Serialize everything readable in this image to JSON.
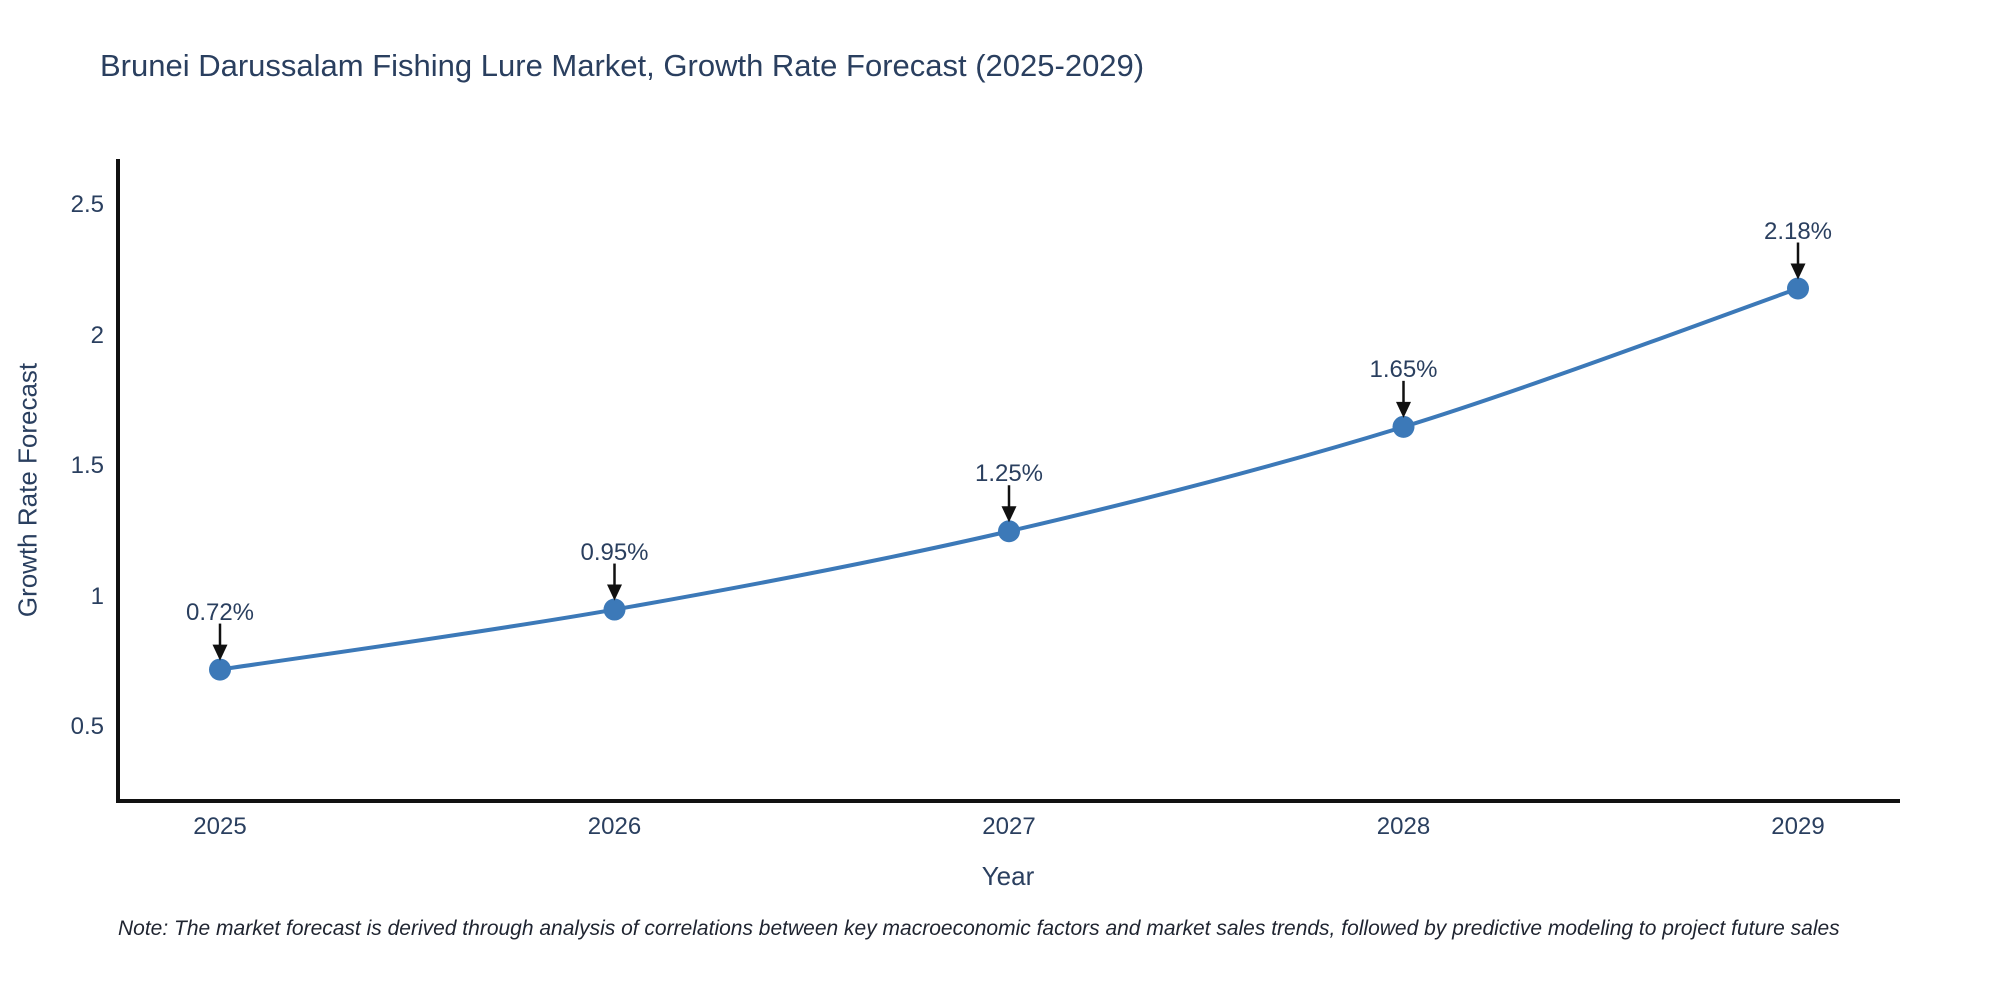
{
  "title": "Brunei Darussalam Fishing Lure Market, Growth Rate Forecast (2025-2029)",
  "note": "Note: The market forecast is derived through analysis of correlations between key macroeconomic factors and market sales trends, followed by predictive modeling to project future sales",
  "colors": {
    "line": "#3c79b8",
    "marker": "#3c79b8",
    "text": "#2a3f5f",
    "axis": "#111111",
    "arrow": "#111111",
    "note_text": "#1f2430",
    "background": "#ffffff"
  },
  "chart_data": {
    "type": "line",
    "title": "Brunei Darussalam Fishing Lure Market, Growth Rate Forecast (2025-2029)",
    "categories": [
      "2025",
      "2026",
      "2027",
      "2028",
      "2029"
    ],
    "series": [
      {
        "name": "Growth Rate Forecast",
        "values": [
          0.72,
          0.95,
          1.25,
          1.65,
          2.18
        ]
      }
    ],
    "point_labels": [
      "0.72%",
      "0.95%",
      "1.25%",
      "1.65%",
      "2.18%"
    ],
    "xlabel": "Year",
    "ylabel": "Growth Rate Forecast",
    "yticks": [
      0.5,
      1,
      1.5,
      2,
      2.5
    ],
    "ytick_labels": [
      "0.5",
      "1",
      "1.5",
      "2",
      "2.5"
    ],
    "ylim": [
      0.22,
      2.67
    ],
    "grid": false,
    "legend_position": "none",
    "line_shape": "spline",
    "annotations_have_arrows": true
  }
}
